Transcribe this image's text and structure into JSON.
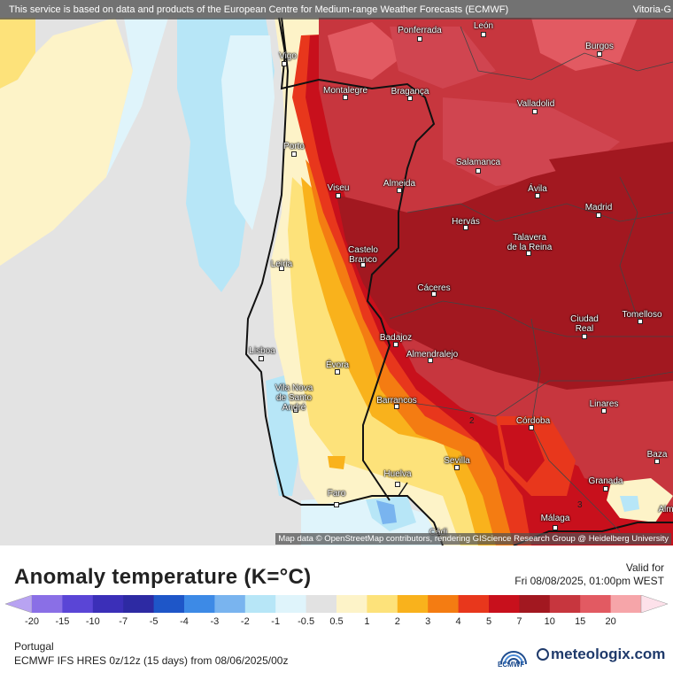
{
  "banner": {
    "notice": "This service is based on data and products of the European Centre for Medium-range Weather Forecasts (ECMWF)",
    "corner_city": "Vitoria-G"
  },
  "attribution": "Map data © OpenStreetMap contributors, rendering GIScience Research Group @ Heidelberg University",
  "cities": {
    "ponferrada": "Ponferrada",
    "leon": "León",
    "burgos": "Burgos",
    "vigo": "Vigo",
    "montalegre": "Montalegre",
    "braganca": "Bragança",
    "valladolid": "Valladolid",
    "porto": "Porto",
    "salamanca": "Salamanca",
    "viseu": "Viseu",
    "almeida": "Almeida",
    "avila": "Ávila",
    "madrid": "Madrid",
    "hervas": "Hervás",
    "talavera": "Talavera\nde la Reina",
    "castelo_branco": "Castelo\nBranco",
    "leiria": "Leiria",
    "caceres": "Cáceres",
    "ciudad_real": "Ciudad\nReal",
    "tomelloso": "Tomelloso",
    "badajoz": "Badajoz",
    "lisboa": "Lisboa",
    "almendralejo": "Almendralejo",
    "evora": "Évora",
    "vila_nova": "Vila Nova\nde Santo\nAndré",
    "barrancos": "Barrancos",
    "linares": "Linares",
    "cordoba": "Córdoba",
    "sevilla": "Sevilla",
    "baza": "Baza",
    "huelva": "Huelva",
    "granada": "Granada",
    "faro": "Faro",
    "malaga": "Málaga",
    "almeria_partial": "Alm",
    "cadiz_partial": "Cádi"
  },
  "isolines": {
    "label_a": "2",
    "label_b": "3"
  },
  "legend": {
    "title": "Anomaly temperature (K=°C)",
    "valid_label": "Valid for",
    "valid_date": "Fri 08/08/2025, 01:00pm WEST",
    "ticks": [
      "-20",
      "-15",
      "-10",
      "-7",
      "-5",
      "-4",
      "-3",
      "-2",
      "-1",
      "-0.5",
      "0.5",
      "1",
      "2",
      "3",
      "4",
      "5",
      "7",
      "10",
      "15",
      "20"
    ],
    "colors": [
      "#b8a3f2",
      "#8a6fe6",
      "#5a45d6",
      "#3b2fb8",
      "#2d2aa3",
      "#1e56c8",
      "#3d8ae6",
      "#79b4ef",
      "#b7e6f7",
      "#dff4fb",
      "#e2e2e2",
      "#fdf3c8",
      "#fde27a",
      "#f9b21c",
      "#f47c12",
      "#e8371c",
      "#c8101c",
      "#a21820",
      "#c7363e",
      "#e25a62",
      "#f6a5a9",
      "#fde1ea"
    ],
    "region": "Portugal",
    "model": "ECMWF IFS HRES 0z/12z (15 days) from 08/06/2025/00z",
    "ecmwf_logo": "ECMWF",
    "brand": "meteologix.com"
  }
}
